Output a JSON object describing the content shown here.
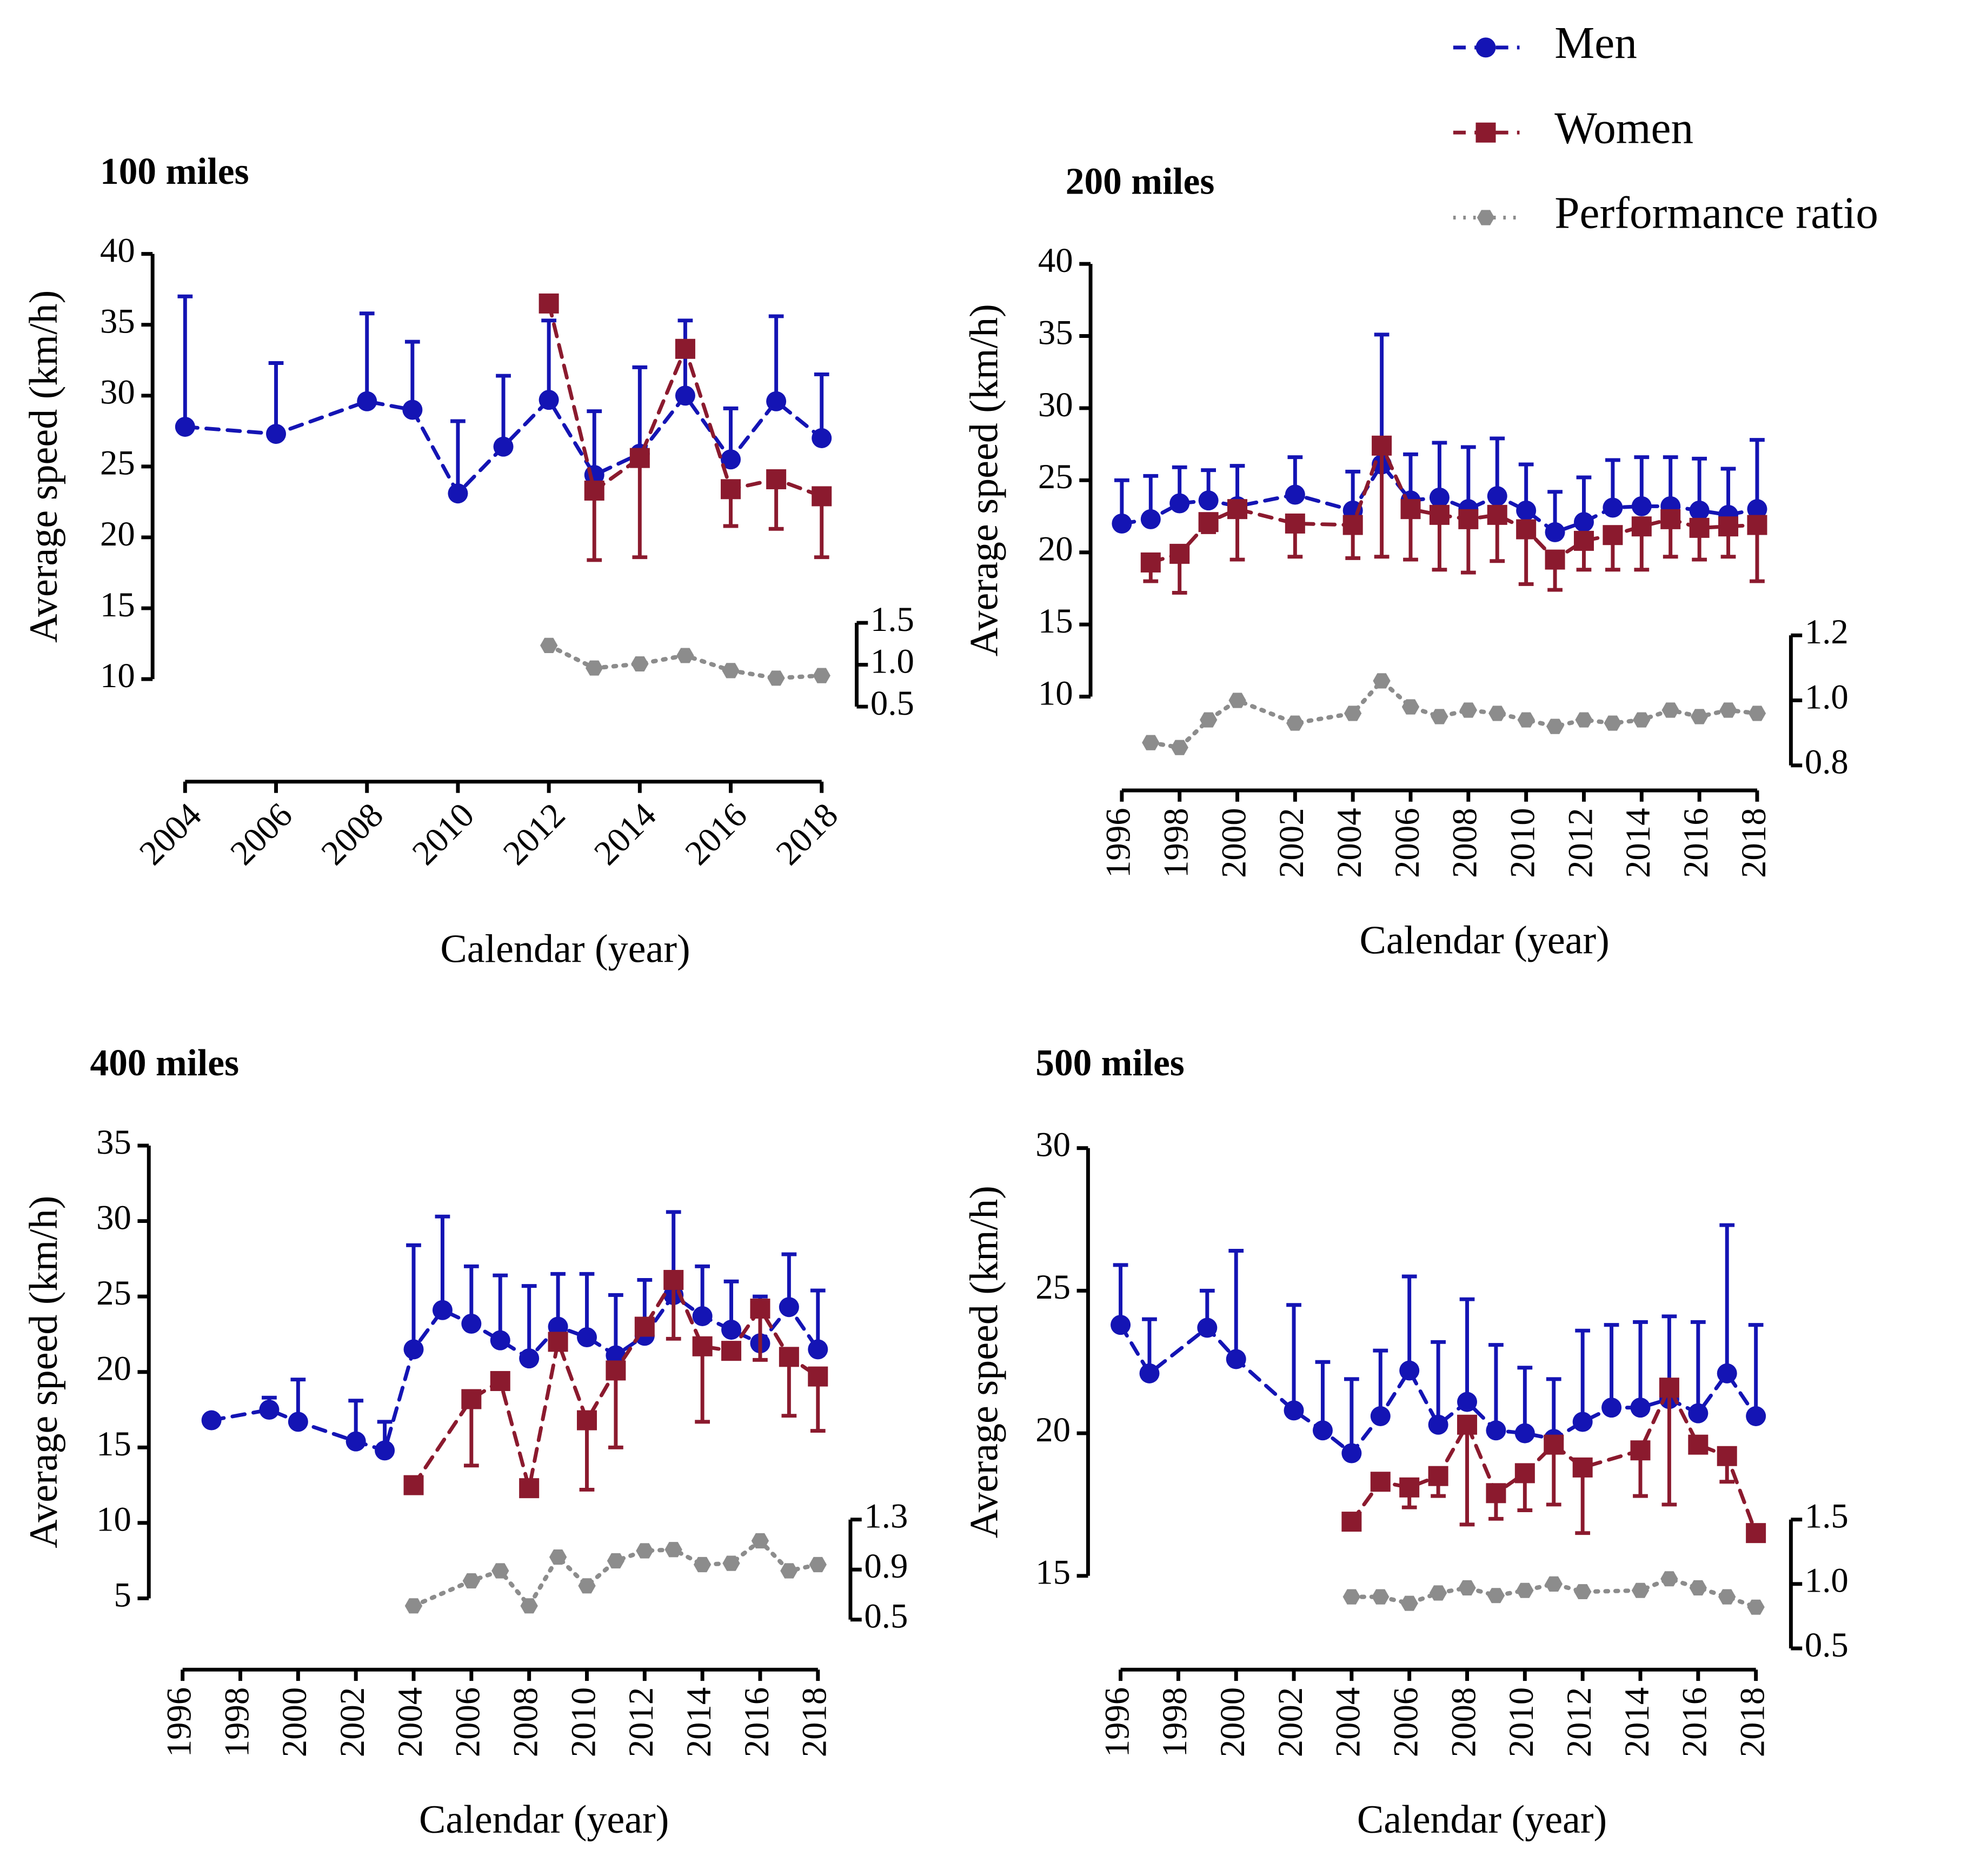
{
  "chart_data": [
    {
      "type": "line",
      "title": "100 miles",
      "x_label": "Calendar (year)",
      "y_label": "Average speed (km/h)",
      "xlim": [
        2004,
        2018
      ],
      "xticks": [
        2004,
        2006,
        2008,
        2010,
        2012,
        2014,
        2016,
        2018
      ],
      "ylim": [
        10,
        40
      ],
      "yticks": [
        10,
        15,
        20,
        25,
        30,
        35,
        40
      ],
      "y2lim": [
        0.5,
        1.5
      ],
      "y2ticks": [
        0.5,
        {
          "value": 1,
          "label": "1.0"
        },
        1.5
      ],
      "series": [
        {
          "name": "Men",
          "color": "#1414b4",
          "marker": "circle",
          "dash": "dashed",
          "error_direction": "up",
          "x": [
            2004,
            2006,
            2008,
            2009,
            2010,
            2011,
            2012,
            2013,
            2014,
            2015,
            2016,
            2017,
            2018
          ],
          "values": [
            27.8,
            27.3,
            29.6,
            29.0,
            23.1,
            26.4,
            29.7,
            24.4,
            25.9,
            30.0,
            25.5,
            29.6,
            27.0
          ],
          "errors": [
            9.2,
            5.0,
            6.2,
            4.8,
            5.1,
            5.0,
            5.6,
            4.5,
            6.1,
            5.3,
            3.6,
            6.0,
            4.5
          ]
        },
        {
          "name": "Women",
          "color": "#8b1a2e",
          "marker": "square",
          "dash": "dashed",
          "error_direction": "down",
          "x": [
            2012,
            2013,
            2014,
            2015,
            2016,
            2017,
            2018
          ],
          "values": [
            36.5,
            23.3,
            25.6,
            33.3,
            23.4,
            24.1,
            22.9
          ],
          "errors": [
            null,
            4.9,
            7.0,
            null,
            2.6,
            3.5,
            4.3
          ]
        },
        {
          "name": "Performance ratio",
          "color": "#8c8c8c",
          "marker": "hexagon",
          "dash": "dotted",
          "axis": "y2",
          "x": [
            2012,
            2013,
            2014,
            2015,
            2016,
            2017,
            2018
          ],
          "values": [
            1.23,
            0.96,
            1.01,
            1.11,
            0.93,
            0.84,
            0.87
          ]
        }
      ]
    },
    {
      "type": "line",
      "title": "200 miles",
      "x_label": "Calendar (year)",
      "y_label": "Average speed (km/h)",
      "xlim": [
        1996,
        2018
      ],
      "xticks": [
        1996,
        1998,
        2000,
        2002,
        2004,
        2006,
        2008,
        2010,
        2012,
        2014,
        2016,
        2018
      ],
      "ylim": [
        10,
        40
      ],
      "yticks": [
        10,
        15,
        20,
        25,
        30,
        35,
        40
      ],
      "y2lim": [
        0.8,
        1.2
      ],
      "y2ticks": [
        0.8,
        {
          "value": 1,
          "label": "1.0"
        },
        1.2
      ],
      "series": [
        {
          "color": "#1414b4",
          "marker": "circle",
          "dash": "dashed",
          "error_direction": "up",
          "x": [
            1996,
            1997,
            1998,
            1999,
            2000,
            2002,
            2004,
            2005,
            2006,
            2007,
            2008,
            2009,
            2010,
            2011,
            2012,
            2013,
            2014,
            2015,
            2016,
            2017,
            2018
          ],
          "values": [
            22.0,
            22.3,
            23.4,
            23.6,
            23.2,
            24.0,
            22.9,
            26.1,
            23.6,
            23.8,
            23.0,
            23.9,
            22.9,
            21.4,
            22.1,
            23.1,
            23.2,
            23.2,
            22.9,
            22.6,
            23.0
          ],
          "errors": [
            3.0,
            3.0,
            2.5,
            2.1,
            2.8,
            2.6,
            2.7,
            9.0,
            3.2,
            3.8,
            4.3,
            4.0,
            3.2,
            2.8,
            3.1,
            3.3,
            3.4,
            3.4,
            3.6,
            3.2,
            4.8
          ]
        },
        {
          "color": "#8b1a2e",
          "marker": "square",
          "dash": "dashed",
          "error_direction": "down",
          "x": [
            1997,
            1998,
            1999,
            2000,
            2002,
            2004,
            2005,
            2006,
            2007,
            2008,
            2009,
            2010,
            2011,
            2012,
            2013,
            2014,
            2015,
            2016,
            2017,
            2018
          ],
          "values": [
            19.3,
            19.9,
            22.1,
            23.0,
            22.0,
            21.9,
            27.4,
            23.0,
            22.6,
            22.3,
            22.6,
            21.6,
            19.5,
            20.8,
            21.2,
            21.8,
            22.3,
            21.7,
            21.8,
            21.9
          ],
          "errors": [
            1.3,
            2.7,
            0.7,
            3.5,
            2.3,
            2.3,
            7.7,
            3.5,
            3.8,
            3.7,
            3.2,
            3.8,
            2.1,
            2.0,
            2.4,
            3.0,
            2.6,
            2.2,
            2.1,
            3.9
          ]
        },
        {
          "color": "#8c8c8c",
          "marker": "hexagon",
          "dash": "dotted",
          "axis": "y2",
          "x": [
            1997,
            1998,
            1999,
            2000,
            2002,
            2004,
            2005,
            2006,
            2007,
            2008,
            2009,
            2010,
            2011,
            2012,
            2013,
            2014,
            2015,
            2016,
            2017,
            2018
          ],
          "values": [
            0.87,
            0.855,
            0.94,
            1.0,
            0.93,
            0.96,
            1.06,
            0.98,
            0.95,
            0.97,
            0.96,
            0.94,
            0.92,
            0.94,
            0.93,
            0.94,
            0.97,
            0.95,
            0.97,
            0.96
          ]
        }
      ]
    },
    {
      "type": "line",
      "title": "400 miles",
      "x_label": "Calendar (year)",
      "y_label": "Average speed (km/h)",
      "xlim": [
        1996,
        2018
      ],
      "xticks": [
        1996,
        1998,
        2000,
        2002,
        2004,
        2006,
        2008,
        2010,
        2012,
        2014,
        2016,
        2018
      ],
      "ylim": [
        5,
        35
      ],
      "yticks": [
        5,
        10,
        15,
        20,
        25,
        30,
        35
      ],
      "y2lim": [
        0.5,
        1.3
      ],
      "y2ticks": [
        0.5,
        0.9,
        1.3
      ],
      "series": [
        {
          "color": "#1414b4",
          "marker": "circle",
          "dash": "dashed",
          "error_direction": "up",
          "x": [
            1997,
            1999,
            2000,
            2002,
            2003,
            2004,
            2005,
            2006,
            2007,
            2008,
            2009,
            2010,
            2011,
            2012,
            2013,
            2014,
            2015,
            2016,
            2017,
            2018
          ],
          "values": [
            16.8,
            17.5,
            16.7,
            15.4,
            14.8,
            21.5,
            24.1,
            23.2,
            22.1,
            20.9,
            23.0,
            22.3,
            21.1,
            22.4,
            25.1,
            23.7,
            22.8,
            21.9,
            24.3,
            21.5
          ],
          "errors": [
            null,
            0.8,
            2.8,
            2.7,
            1.9,
            6.9,
            6.2,
            3.8,
            4.3,
            4.8,
            3.5,
            4.2,
            4.0,
            3.7,
            5.5,
            3.3,
            3.2,
            3.1,
            3.5,
            3.9
          ]
        },
        {
          "color": "#8b1a2e",
          "marker": "square",
          "dash": "dashed",
          "error_direction": "down",
          "x": [
            2004,
            2006,
            2007,
            2008,
            2009,
            2010,
            2011,
            2012,
            2013,
            2014,
            2015,
            2016,
            2017,
            2018
          ],
          "values": [
            12.5,
            18.2,
            19.4,
            12.3,
            22.0,
            16.8,
            20.1,
            23.0,
            26.1,
            21.7,
            21.4,
            24.2,
            21.0,
            19.7
          ],
          "errors": [
            null,
            4.4,
            null,
            null,
            null,
            4.6,
            5.1,
            null,
            3.9,
            5.0,
            null,
            3.4,
            3.9,
            3.6
          ]
        },
        {
          "color": "#8c8c8c",
          "marker": "hexagon",
          "dash": "dotted",
          "axis": "y2",
          "x": [
            2004,
            2006,
            2007,
            2008,
            2009,
            2010,
            2011,
            2012,
            2013,
            2014,
            2015,
            2016,
            2017,
            2018
          ],
          "values": [
            0.61,
            0.81,
            0.89,
            0.61,
            1.0,
            0.77,
            0.97,
            1.05,
            1.06,
            0.94,
            0.95,
            1.13,
            0.89,
            0.94
          ]
        }
      ]
    },
    {
      "type": "line",
      "title": "500 miles",
      "x_label": "Calendar (year)",
      "y_label": "Average speed (km/h)",
      "xlim": [
        1996,
        2018
      ],
      "xticks": [
        1996,
        1998,
        2000,
        2002,
        2004,
        2006,
        2008,
        2010,
        2012,
        2014,
        2016,
        2018
      ],
      "ylim": [
        15,
        30
      ],
      "yticks": [
        15,
        20,
        25,
        30
      ],
      "y2lim": [
        0.5,
        1.5
      ],
      "y2ticks": [
        0.5,
        {
          "value": 1,
          "label": "1.0"
        },
        1.5
      ],
      "series": [
        {
          "color": "#1414b4",
          "marker": "circle",
          "dash": "dashed",
          "error_direction": "up",
          "x": [
            1996,
            1997,
            1999,
            2000,
            2002,
            2003,
            2004,
            2005,
            2006,
            2007,
            2008,
            2009,
            2010,
            2011,
            2012,
            2013,
            2014,
            2015,
            2016,
            2017,
            2018
          ],
          "values": [
            23.8,
            22.1,
            23.7,
            22.6,
            20.8,
            20.1,
            19.3,
            20.6,
            22.2,
            20.3,
            21.1,
            20.1,
            20.0,
            19.8,
            20.4,
            20.9,
            20.9,
            21.2,
            20.7,
            22.1,
            20.6
          ],
          "errors": [
            2.1,
            1.9,
            1.3,
            3.8,
            3.7,
            2.4,
            2.6,
            2.3,
            3.3,
            2.9,
            3.6,
            3.0,
            2.3,
            2.1,
            3.2,
            2.9,
            3.0,
            2.9,
            3.2,
            5.2,
            3.2
          ]
        },
        {
          "color": "#8b1a2e",
          "marker": "square",
          "dash": "dashed",
          "error_direction": "down",
          "x": [
            2004,
            2005,
            2006,
            2007,
            2008,
            2009,
            2010,
            2011,
            2012,
            2014,
            2015,
            2016,
            2017,
            2018
          ],
          "values": [
            16.9,
            18.3,
            18.1,
            18.5,
            20.3,
            17.9,
            18.6,
            19.6,
            18.8,
            19.4,
            21.6,
            19.6,
            19.2,
            16.5
          ],
          "errors": [
            null,
            null,
            0.7,
            0.7,
            3.5,
            0.9,
            1.3,
            2.1,
            2.3,
            1.6,
            4.1,
            null,
            0.9,
            null
          ]
        },
        {
          "color": "#8c8c8c",
          "marker": "hexagon",
          "dash": "dotted",
          "axis": "y2",
          "x": [
            2004,
            2005,
            2006,
            2007,
            2008,
            2009,
            2010,
            2011,
            2012,
            2014,
            2015,
            2016,
            2017,
            2018
          ],
          "values": [
            0.9,
            0.9,
            0.85,
            0.93,
            0.97,
            0.91,
            0.95,
            1.0,
            0.94,
            0.95,
            1.04,
            0.97,
            0.9,
            0.82
          ]
        }
      ]
    }
  ]
}
